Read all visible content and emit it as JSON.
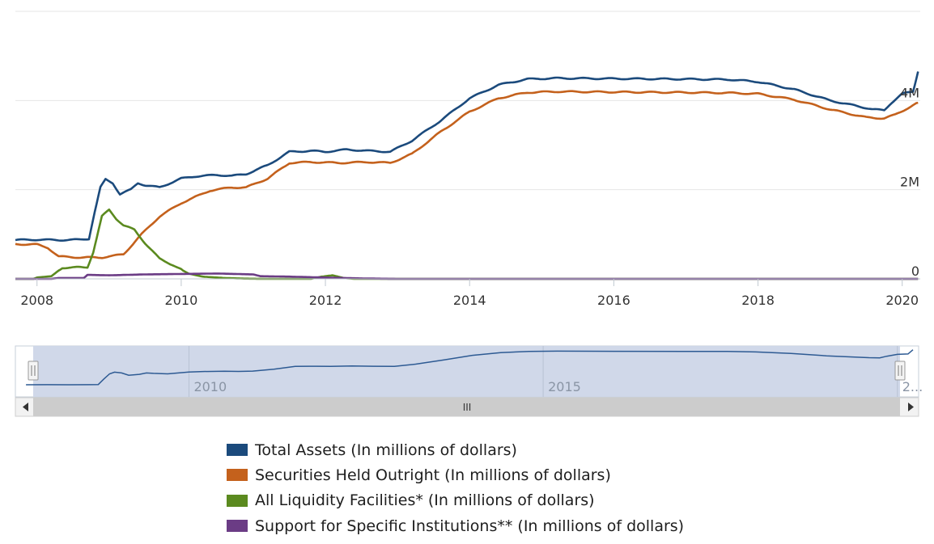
{
  "chart_data": {
    "type": "line",
    "title": "",
    "xlabel": "",
    "ylabel": "",
    "xlim": [
      2007.7,
      2020.25
    ],
    "ylim": [
      0,
      6000000
    ],
    "x_ticks": [
      {
        "value": 2008,
        "label": "2008"
      },
      {
        "value": 2010,
        "label": "2010"
      },
      {
        "value": 2012,
        "label": "2012"
      },
      {
        "value": 2014,
        "label": "2014"
      },
      {
        "value": 2016,
        "label": "2016"
      },
      {
        "value": 2018,
        "label": "2018"
      },
      {
        "value": 2020,
        "label": "2020"
      }
    ],
    "y_ticks": [
      {
        "value": 0,
        "label": "0"
      },
      {
        "value": 2000000,
        "label": "2M"
      },
      {
        "value": 4000000,
        "label": "4M"
      }
    ],
    "grid": true,
    "legend_position": "bottom",
    "series": [
      {
        "name": "Total Assets (In millions of dollars)",
        "color": "#1b4a7c",
        "points": [
          [
            2007.7,
            870000
          ],
          [
            2008.0,
            880000
          ],
          [
            2008.3,
            870000
          ],
          [
            2008.6,
            880000
          ],
          [
            2008.72,
            900000
          ],
          [
            2008.8,
            1500000
          ],
          [
            2008.88,
            2050000
          ],
          [
            2008.95,
            2230000
          ],
          [
            2009.05,
            2150000
          ],
          [
            2009.15,
            1900000
          ],
          [
            2009.3,
            2000000
          ],
          [
            2009.4,
            2150000
          ],
          [
            2009.5,
            2100000
          ],
          [
            2009.7,
            2050000
          ],
          [
            2009.85,
            2150000
          ],
          [
            2010.0,
            2250000
          ],
          [
            2010.2,
            2300000
          ],
          [
            2010.5,
            2330000
          ],
          [
            2010.7,
            2310000
          ],
          [
            2010.9,
            2350000
          ],
          [
            2011.2,
            2550000
          ],
          [
            2011.5,
            2850000
          ],
          [
            2011.8,
            2870000
          ],
          [
            2012.0,
            2850000
          ],
          [
            2012.3,
            2900000
          ],
          [
            2012.6,
            2870000
          ],
          [
            2012.9,
            2850000
          ],
          [
            2013.2,
            3100000
          ],
          [
            2013.6,
            3550000
          ],
          [
            2014.0,
            4050000
          ],
          [
            2014.4,
            4350000
          ],
          [
            2014.8,
            4480000
          ],
          [
            2015.2,
            4500000
          ],
          [
            2016.0,
            4490000
          ],
          [
            2017.0,
            4480000
          ],
          [
            2017.6,
            4470000
          ],
          [
            2018.0,
            4420000
          ],
          [
            2018.5,
            4250000
          ],
          [
            2019.0,
            4000000
          ],
          [
            2019.6,
            3800000
          ],
          [
            2019.75,
            3780000
          ],
          [
            2019.85,
            3950000
          ],
          [
            2020.0,
            4150000
          ],
          [
            2020.15,
            4200000
          ],
          [
            2020.22,
            4650000
          ]
        ]
      },
      {
        "name": "Securities Held Outright (In millions of dollars)",
        "color": "#c4611c",
        "points": [
          [
            2007.7,
            780000
          ],
          [
            2008.0,
            770000
          ],
          [
            2008.15,
            700000
          ],
          [
            2008.3,
            500000
          ],
          [
            2008.6,
            480000
          ],
          [
            2008.9,
            480000
          ],
          [
            2009.2,
            550000
          ],
          [
            2009.45,
            1000000
          ],
          [
            2009.7,
            1400000
          ],
          [
            2010.0,
            1700000
          ],
          [
            2010.4,
            1980000
          ],
          [
            2010.7,
            2050000
          ],
          [
            2010.9,
            2050000
          ],
          [
            2011.2,
            2250000
          ],
          [
            2011.5,
            2600000
          ],
          [
            2011.8,
            2620000
          ],
          [
            2012.2,
            2600000
          ],
          [
            2012.6,
            2620000
          ],
          [
            2012.9,
            2600000
          ],
          [
            2013.2,
            2800000
          ],
          [
            2013.6,
            3300000
          ],
          [
            2014.0,
            3750000
          ],
          [
            2014.4,
            4050000
          ],
          [
            2014.8,
            4180000
          ],
          [
            2015.2,
            4200000
          ],
          [
            2016.0,
            4190000
          ],
          [
            2017.0,
            4180000
          ],
          [
            2017.6,
            4170000
          ],
          [
            2018.0,
            4150000
          ],
          [
            2018.5,
            4020000
          ],
          [
            2019.0,
            3800000
          ],
          [
            2019.5,
            3620000
          ],
          [
            2019.75,
            3600000
          ],
          [
            2019.9,
            3680000
          ],
          [
            2020.1,
            3850000
          ],
          [
            2020.22,
            3950000
          ]
        ]
      },
      {
        "name": "All Liquidity Facilities* (In millions of dollars)",
        "color": "#5b8a1f",
        "points": [
          [
            2007.7,
            0
          ],
          [
            2007.95,
            0
          ],
          [
            2008.0,
            30000
          ],
          [
            2008.2,
            60000
          ],
          [
            2008.35,
            250000
          ],
          [
            2008.7,
            260000
          ],
          [
            2008.78,
            600000
          ],
          [
            2008.9,
            1400000
          ],
          [
            2009.0,
            1550000
          ],
          [
            2009.1,
            1350000
          ],
          [
            2009.2,
            1200000
          ],
          [
            2009.35,
            1100000
          ],
          [
            2009.5,
            800000
          ],
          [
            2009.7,
            450000
          ],
          [
            2009.9,
            300000
          ],
          [
            2010.1,
            120000
          ],
          [
            2010.3,
            50000
          ],
          [
            2010.6,
            20000
          ],
          [
            2010.9,
            5000
          ],
          [
            2011.2,
            0
          ],
          [
            2011.8,
            0
          ],
          [
            2011.95,
            50000
          ],
          [
            2012.1,
            80000
          ],
          [
            2012.25,
            20000
          ],
          [
            2012.4,
            0
          ],
          [
            2020.22,
            0
          ]
        ]
      },
      {
        "name": "Support for Specific Institutions** (In millions of dollars)",
        "color": "#6b3c85",
        "points": [
          [
            2007.7,
            0
          ],
          [
            2008.2,
            0
          ],
          [
            2008.3,
            20000
          ],
          [
            2008.65,
            20000
          ],
          [
            2008.7,
            90000
          ],
          [
            2009.0,
            80000
          ],
          [
            2009.5,
            100000
          ],
          [
            2010.0,
            110000
          ],
          [
            2010.5,
            120000
          ],
          [
            2011.0,
            100000
          ],
          [
            2011.1,
            60000
          ],
          [
            2011.5,
            50000
          ],
          [
            2012.0,
            30000
          ],
          [
            2012.5,
            10000
          ],
          [
            2013.0,
            0
          ],
          [
            2020.22,
            0
          ]
        ]
      }
    ]
  },
  "navigator": {
    "labels": [
      {
        "value": 2010,
        "label": "2010"
      },
      {
        "value": 2015,
        "label": "2015"
      },
      {
        "value": 2020,
        "label": "2..."
      }
    ],
    "scroll_thumb_label": "III",
    "handle_glyph": "II"
  },
  "legend": [
    {
      "label": "Total Assets (In millions of dollars)",
      "color": "#1b4a7c"
    },
    {
      "label": "Securities Held Outright (In millions of dollars)",
      "color": "#c4611c"
    },
    {
      "label": "All Liquidity Facilities* (In millions of dollars)",
      "color": "#5b8a1f"
    },
    {
      "label": "Support for Specific Institutions** (In millions of dollars)",
      "color": "#6b3c85"
    }
  ]
}
